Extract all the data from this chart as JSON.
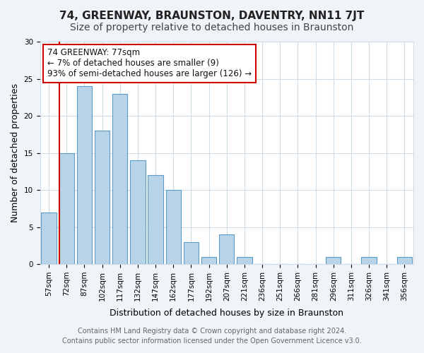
{
  "title": "74, GREENWAY, BRAUNSTON, DAVENTRY, NN11 7JT",
  "subtitle": "Size of property relative to detached houses in Braunston",
  "xlabel": "Distribution of detached houses by size in Braunston",
  "ylabel": "Number of detached properties",
  "categories": [
    "57sqm",
    "72sqm",
    "87sqm",
    "102sqm",
    "117sqm",
    "132sqm",
    "147sqm",
    "162sqm",
    "177sqm",
    "192sqm",
    "207sqm",
    "221sqm",
    "236sqm",
    "251sqm",
    "266sqm",
    "281sqm",
    "296sqm",
    "311sqm",
    "326sqm",
    "341sqm",
    "356sqm"
  ],
  "values": [
    7,
    15,
    24,
    18,
    23,
    14,
    12,
    10,
    3,
    1,
    4,
    1,
    0,
    0,
    0,
    0,
    1,
    0,
    1,
    0,
    1
  ],
  "bar_color": "#b8d4e8",
  "bar_edge_color": "#5a9cc5",
  "vline_x": 1,
  "vline_color": "#cc0000",
  "annotation_text": "74 GREENWAY: 77sqm\n← 7% of detached houses are smaller (9)\n93% of semi-detached houses are larger (126) →",
  "annotation_box_color": "#ffffff",
  "annotation_box_edge": "#cc0000",
  "ylim": [
    0,
    30
  ],
  "yticks": [
    0,
    5,
    10,
    15,
    20,
    25,
    30
  ],
  "footer_line1": "Contains HM Land Registry data © Crown copyright and database right 2024.",
  "footer_line2": "Contains public sector information licensed under the Open Government Licence v3.0.",
  "background_color": "#f0f4f8",
  "plot_background": "#ffffff",
  "grid_color": "#d0dce8",
  "title_fontsize": 11,
  "subtitle_fontsize": 10,
  "xlabel_fontsize": 9,
  "ylabel_fontsize": 9,
  "tick_fontsize": 7.5,
  "footer_fontsize": 7,
  "annotation_fontsize": 8.5
}
